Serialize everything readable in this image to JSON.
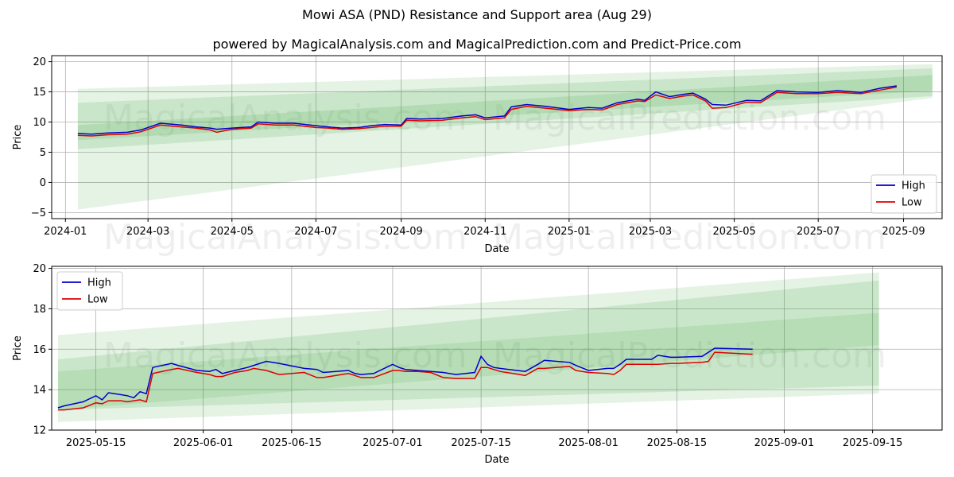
{
  "title": "Mowi ASA (PND) Resistance and Support area (Aug 29)",
  "subtitle": "powered by MagicalAnalysis.com and MagicalPrediction.com and Predict-Price.com",
  "watermarks": [
    "MagicalAnalysis.com",
    "MagicalPrediction.com"
  ],
  "colors": {
    "high": "#0000cc",
    "low": "#dd0000",
    "band": "#2ca02c",
    "grid": "#b0b0b0"
  },
  "chart_data": [
    {
      "type": "line",
      "xlabel": "Date",
      "ylabel": "Price",
      "xlim": [
        "2023-12-22",
        "2025-09-29"
      ],
      "ylim": [
        -6,
        21
      ],
      "x_ticks": [
        "2024-01",
        "2024-03",
        "2024-05",
        "2024-07",
        "2024-09",
        "2024-11",
        "2025-01",
        "2025-03",
        "2025-05",
        "2025-07",
        "2025-09"
      ],
      "y_ticks": [
        -5,
        0,
        5,
        10,
        15,
        20
      ],
      "grid": true,
      "legend": "bottom-right",
      "bands": [
        {
          "x0": "2024-01-10",
          "x1": "2025-09-22",
          "top": [
            15.5,
            19.6
          ],
          "bottom": [
            -4.5,
            14.0
          ],
          "alpha": 0.12
        },
        {
          "x0": "2024-01-10",
          "x1": "2025-09-22",
          "top": [
            13.2,
            18.9
          ],
          "bottom": [
            5.5,
            14.3
          ],
          "alpha": 0.15
        },
        {
          "x0": "2024-01-10",
          "x1": "2025-09-22",
          "top": [
            9.5,
            17.8
          ],
          "bottom": [
            7.0,
            15.2
          ],
          "alpha": 0.15
        }
      ],
      "series": [
        {
          "name": "High",
          "x": [
            "2024-01-10",
            "2024-01-20",
            "2024-02-01",
            "2024-02-15",
            "2024-02-25",
            "2024-03-10",
            "2024-03-25",
            "2024-04-05",
            "2024-04-15",
            "2024-04-20",
            "2024-05-01",
            "2024-05-15",
            "2024-05-20",
            "2024-06-01",
            "2024-06-15",
            "2024-07-01",
            "2024-07-10",
            "2024-07-20",
            "2024-08-01",
            "2024-08-10",
            "2024-08-20",
            "2024-09-01",
            "2024-09-05",
            "2024-09-15",
            "2024-10-01",
            "2024-10-15",
            "2024-10-25",
            "2024-11-01",
            "2024-11-15",
            "2024-11-20",
            "2024-12-01",
            "2024-12-15",
            "2025-01-01",
            "2025-01-15",
            "2025-01-25",
            "2025-02-05",
            "2025-02-20",
            "2025-02-25",
            "2025-03-05",
            "2025-03-15",
            "2025-03-25",
            "2025-04-01",
            "2025-04-10",
            "2025-04-15",
            "2025-04-25",
            "2025-05-10",
            "2025-05-20",
            "2025-06-01",
            "2025-06-15",
            "2025-07-01",
            "2025-07-15",
            "2025-08-01",
            "2025-08-15",
            "2025-08-27"
          ],
          "values": [
            8.1,
            8.0,
            8.2,
            8.3,
            8.7,
            9.8,
            9.5,
            9.2,
            9.0,
            8.8,
            9.0,
            9.2,
            10.0,
            9.8,
            9.8,
            9.4,
            9.2,
            9.0,
            9.1,
            9.4,
            9.6,
            9.5,
            10.6,
            10.5,
            10.6,
            11.0,
            11.2,
            10.7,
            11.0,
            12.5,
            12.9,
            12.6,
            12.1,
            12.4,
            12.3,
            13.2,
            13.8,
            13.6,
            15.0,
            14.2,
            14.6,
            14.8,
            13.8,
            12.9,
            12.8,
            13.6,
            13.5,
            15.2,
            15.0,
            14.9,
            15.2,
            14.9,
            15.6,
            16.0
          ]
        },
        {
          "name": "Low",
          "x": [
            "2024-01-10",
            "2024-01-20",
            "2024-02-01",
            "2024-02-15",
            "2024-02-25",
            "2024-03-10",
            "2024-03-25",
            "2024-04-05",
            "2024-04-15",
            "2024-04-20",
            "2024-05-01",
            "2024-05-15",
            "2024-05-20",
            "2024-06-01",
            "2024-06-15",
            "2024-07-01",
            "2024-07-10",
            "2024-07-20",
            "2024-08-01",
            "2024-08-10",
            "2024-08-20",
            "2024-09-01",
            "2024-09-05",
            "2024-09-15",
            "2024-10-01",
            "2024-10-15",
            "2024-10-25",
            "2024-11-01",
            "2024-11-15",
            "2024-11-20",
            "2024-12-01",
            "2024-12-15",
            "2025-01-01",
            "2025-01-15",
            "2025-01-25",
            "2025-02-05",
            "2025-02-20",
            "2025-02-25",
            "2025-03-05",
            "2025-03-15",
            "2025-03-25",
            "2025-04-01",
            "2025-04-10",
            "2025-04-15",
            "2025-04-25",
            "2025-05-10",
            "2025-05-20",
            "2025-06-01",
            "2025-06-15",
            "2025-07-01",
            "2025-07-15",
            "2025-08-01",
            "2025-08-15",
            "2025-08-27"
          ],
          "values": [
            7.8,
            7.7,
            7.9,
            8.0,
            8.4,
            9.5,
            9.2,
            9.0,
            8.7,
            8.3,
            8.8,
            9.0,
            9.7,
            9.5,
            9.5,
            9.1,
            9.0,
            8.8,
            8.9,
            9.1,
            9.3,
            9.3,
            10.3,
            10.2,
            10.3,
            10.7,
            10.9,
            10.4,
            10.7,
            12.1,
            12.6,
            12.3,
            11.9,
            12.1,
            12.0,
            12.9,
            13.5,
            13.4,
            14.5,
            13.9,
            14.3,
            14.5,
            13.5,
            12.3,
            12.4,
            13.3,
            13.2,
            14.9,
            14.7,
            14.7,
            14.9,
            14.7,
            15.3,
            15.8
          ]
        }
      ]
    },
    {
      "type": "line",
      "xlabel": "Date",
      "ylabel": "Price",
      "xlim": [
        "2025-05-08",
        "2025-09-26"
      ],
      "ylim": [
        12,
        20.1
      ],
      "x_ticks": [
        "2025-05-15",
        "2025-06-01",
        "2025-06-15",
        "2025-07-01",
        "2025-07-15",
        "2025-08-01",
        "2025-08-15",
        "2025-09-01",
        "2025-09-15"
      ],
      "y_ticks": [
        12,
        14,
        16,
        18,
        20
      ],
      "grid": true,
      "legend": "top-left",
      "bands": [
        {
          "x0": "2025-05-09",
          "x1": "2025-09-16",
          "top": [
            16.7,
            19.8
          ],
          "bottom": [
            12.4,
            13.8
          ],
          "alpha": 0.12
        },
        {
          "x0": "2025-05-09",
          "x1": "2025-09-16",
          "top": [
            15.5,
            19.4
          ],
          "bottom": [
            13.0,
            14.2
          ],
          "alpha": 0.15
        },
        {
          "x0": "2025-05-09",
          "x1": "2025-09-16",
          "top": [
            14.9,
            17.8
          ],
          "bottom": [
            13.0,
            16.2
          ],
          "alpha": 0.12
        }
      ],
      "series": [
        {
          "name": "High",
          "x": [
            "2025-05-09",
            "2025-05-10",
            "2025-05-13",
            "2025-05-15",
            "2025-05-16",
            "2025-05-17",
            "2025-05-19",
            "2025-05-20",
            "2025-05-21",
            "2025-05-22",
            "2025-05-23",
            "2025-05-24",
            "2025-05-27",
            "2025-05-28",
            "2025-05-31",
            "2025-06-02",
            "2025-06-03",
            "2025-06-04",
            "2025-06-06",
            "2025-06-08",
            "2025-06-09",
            "2025-06-11",
            "2025-06-13",
            "2025-06-17",
            "2025-06-19",
            "2025-06-20",
            "2025-06-24",
            "2025-06-25",
            "2025-06-26",
            "2025-06-28",
            "2025-07-01",
            "2025-07-02",
            "2025-07-03",
            "2025-07-05",
            "2025-07-07",
            "2025-07-09",
            "2025-07-11",
            "2025-07-14",
            "2025-07-15",
            "2025-07-16",
            "2025-07-17",
            "2025-07-18",
            "2025-07-22",
            "2025-07-24",
            "2025-07-25",
            "2025-07-29",
            "2025-07-30",
            "2025-08-01",
            "2025-08-04",
            "2025-08-05",
            "2025-08-06",
            "2025-08-07",
            "2025-08-11",
            "2025-08-12",
            "2025-08-14",
            "2025-08-15",
            "2025-08-19",
            "2025-08-20",
            "2025-08-21",
            "2025-08-27"
          ],
          "values": [
            13.1,
            13.2,
            13.4,
            13.7,
            13.5,
            13.85,
            13.75,
            13.7,
            13.6,
            13.9,
            13.8,
            15.1,
            15.3,
            15.2,
            14.95,
            14.9,
            15.0,
            14.8,
            14.95,
            15.1,
            15.2,
            15.4,
            15.3,
            15.05,
            15.0,
            14.85,
            14.95,
            14.8,
            14.75,
            14.8,
            15.25,
            15.1,
            15.0,
            14.95,
            14.9,
            14.85,
            14.75,
            14.85,
            15.65,
            15.25,
            15.1,
            15.05,
            14.9,
            15.25,
            15.45,
            15.35,
            15.2,
            14.95,
            15.05,
            15.05,
            15.25,
            15.5,
            15.5,
            15.7,
            15.6,
            15.6,
            15.65,
            15.85,
            16.05,
            16.0
          ]
        },
        {
          "name": "Low",
          "x": [
            "2025-05-09",
            "2025-05-10",
            "2025-05-13",
            "2025-05-15",
            "2025-05-16",
            "2025-05-17",
            "2025-05-19",
            "2025-05-20",
            "2025-05-21",
            "2025-05-22",
            "2025-05-23",
            "2025-05-24",
            "2025-05-27",
            "2025-05-28",
            "2025-05-31",
            "2025-06-02",
            "2025-06-03",
            "2025-06-04",
            "2025-06-06",
            "2025-06-08",
            "2025-06-09",
            "2025-06-11",
            "2025-06-13",
            "2025-06-17",
            "2025-06-19",
            "2025-06-20",
            "2025-06-24",
            "2025-06-25",
            "2025-06-26",
            "2025-06-28",
            "2025-07-01",
            "2025-07-02",
            "2025-07-03",
            "2025-07-05",
            "2025-07-07",
            "2025-07-09",
            "2025-07-11",
            "2025-07-14",
            "2025-07-15",
            "2025-07-16",
            "2025-07-17",
            "2025-07-18",
            "2025-07-22",
            "2025-07-24",
            "2025-07-25",
            "2025-07-29",
            "2025-07-30",
            "2025-08-01",
            "2025-08-04",
            "2025-08-05",
            "2025-08-06",
            "2025-08-07",
            "2025-08-11",
            "2025-08-12",
            "2025-08-14",
            "2025-08-15",
            "2025-08-19",
            "2025-08-20",
            "2025-08-21",
            "2025-08-27"
          ],
          "values": [
            13.0,
            13.0,
            13.1,
            13.35,
            13.3,
            13.45,
            13.45,
            13.4,
            13.45,
            13.5,
            13.4,
            14.8,
            15.0,
            15.05,
            14.85,
            14.75,
            14.65,
            14.65,
            14.85,
            14.95,
            15.05,
            14.95,
            14.75,
            14.85,
            14.6,
            14.6,
            14.8,
            14.7,
            14.6,
            14.6,
            14.95,
            14.95,
            14.9,
            14.9,
            14.85,
            14.6,
            14.55,
            14.55,
            15.1,
            15.1,
            15.0,
            14.9,
            14.7,
            15.05,
            15.05,
            15.15,
            14.95,
            14.85,
            14.8,
            14.75,
            14.95,
            15.25,
            15.25,
            15.25,
            15.3,
            15.3,
            15.35,
            15.4,
            15.85,
            15.75
          ]
        }
      ]
    }
  ]
}
